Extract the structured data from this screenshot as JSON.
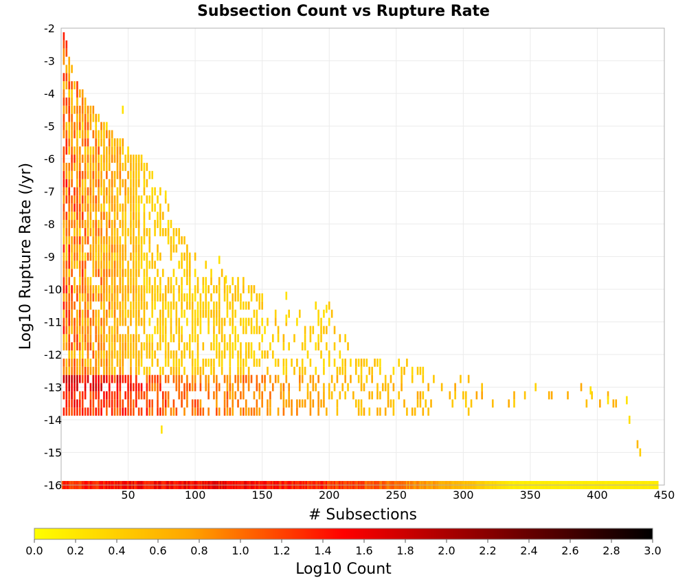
{
  "chart_data": {
    "type": "heatmap",
    "title": "Subsection Count vs Rupture Rate",
    "xlabel": "# Subsections",
    "ylabel": "Log10 Rupture Rate (/yr)",
    "xlim": [
      0,
      450
    ],
    "ylim": [
      -16,
      -2
    ],
    "xticks": [
      50,
      100,
      150,
      200,
      250,
      300,
      350,
      400,
      450
    ],
    "yticks": [
      -2,
      -3,
      -4,
      -5,
      -6,
      -7,
      -8,
      -9,
      -10,
      -11,
      -12,
      -13,
      -14,
      -15,
      -16
    ],
    "grid": true,
    "colorbar": {
      "label": "Log10 Count",
      "range": [
        0.0,
        3.0
      ],
      "ticks": [
        "0.0",
        "0.2",
        "0.4",
        "0.6",
        "0.8",
        "1.0",
        "1.2",
        "1.4",
        "1.6",
        "1.8",
        "2.0",
        "2.2",
        "2.4",
        "2.6",
        "2.8",
        "3.0"
      ],
      "placement": "bottom",
      "colormap": [
        "#ffff00",
        "#ffa500",
        "#ff0000",
        "#800000",
        "#000000"
      ]
    },
    "bins": {
      "x_bin_width": 1,
      "y_bin_height": 0.25
    },
    "density_regions": [
      {
        "x_range": [
          1,
          445
        ],
        "y": -16.0,
        "log10_count_peak": 1.6,
        "peak_x": 100,
        "description_value": "bottom band"
      },
      {
        "x_range": [
          3,
          425
        ],
        "y": -13.25,
        "log10_count_peak": 1.5,
        "peak_x": 10
      },
      {
        "x_range": [
          2,
          60
        ],
        "y_range": [
          -13,
          -3
        ],
        "log10_count_peak": 1.4
      }
    ],
    "envelope": {
      "x": [
        2,
        10,
        20,
        30,
        40,
        50,
        60,
        70,
        80,
        90,
        100,
        120,
        140,
        160,
        180,
        200,
        220,
        240,
        260,
        280,
        300,
        320,
        340,
        360,
        380,
        400,
        420,
        440
      ],
      "y_max": [
        -2.1,
        -3.5,
        -4.3,
        -4.8,
        -5.2,
        -5.6,
        -6.0,
        -6.6,
        -7.4,
        -8.4,
        -8.9,
        -9.4,
        -9.8,
        -10.6,
        -10.6,
        -10.4,
        -12.2,
        -12.2,
        -12.2,
        -12.6,
        -12.6,
        -12.8,
        -12.8,
        -12.8,
        -13.0,
        -13.0,
        -13.4,
        -16.0
      ],
      "y_min": [
        -13.8,
        -13.8,
        -13.8,
        -13.8,
        -13.8,
        -13.8,
        -13.8,
        -13.8,
        -13.8,
        -13.8,
        -13.8,
        -13.8,
        -13.8,
        -13.8,
        -13.8,
        -13.8,
        -13.8,
        -13.8,
        -13.8,
        -13.8,
        -13.8,
        -13.5,
        -13.5,
        -13.5,
        -13.5,
        -13.5,
        -13.5,
        -16.0
      ]
    },
    "outliers": [
      {
        "x": 46,
        "y": -4.5
      },
      {
        "x": 78,
        "y": -7.1
      },
      {
        "x": 75,
        "y": -14.3
      },
      {
        "x": 118,
        "y": -9.1
      },
      {
        "x": 123,
        "y": -9.7
      },
      {
        "x": 168,
        "y": -10.2
      },
      {
        "x": 198,
        "y": -10.6
      },
      {
        "x": 168,
        "y": -10.9
      },
      {
        "x": 395,
        "y": -13.1
      },
      {
        "x": 408,
        "y": -13.4
      },
      {
        "x": 422,
        "y": -13.4
      }
    ]
  }
}
